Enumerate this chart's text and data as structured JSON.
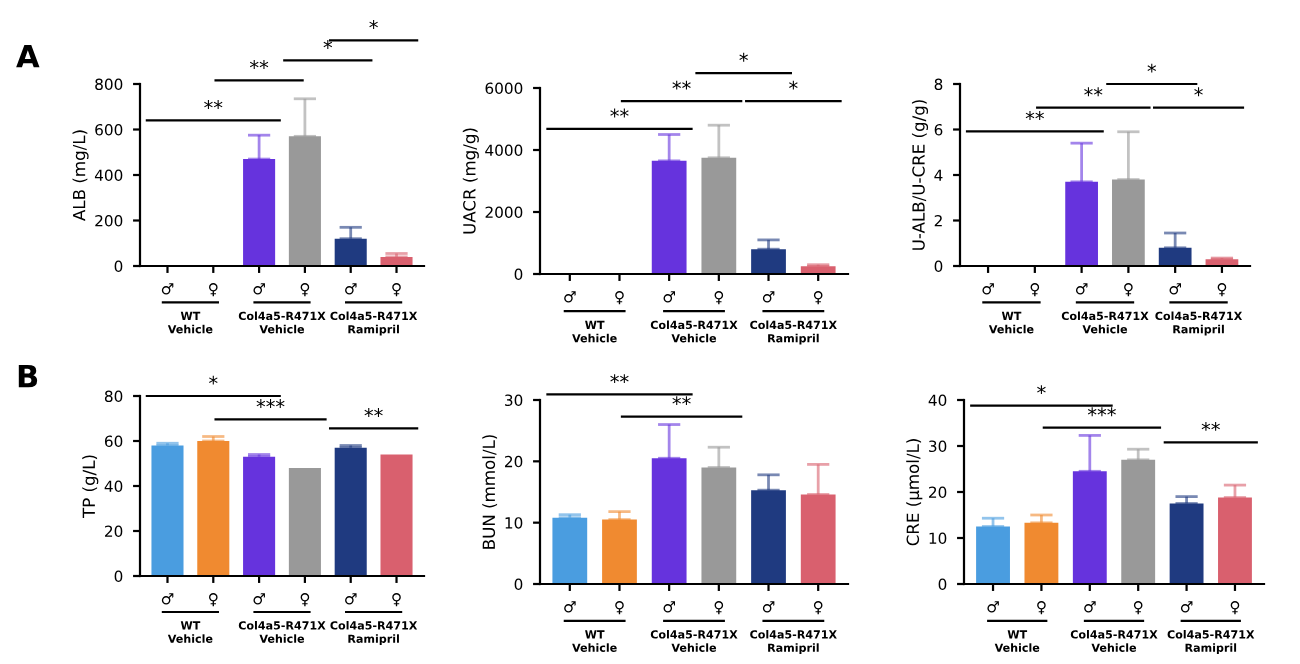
{
  "chart_data": [
    {
      "type": "bar",
      "ylabel": "ALB (mg/L)",
      "categories": [
        "♂",
        "♀",
        "♂",
        "♀",
        "♂",
        "♀"
      ],
      "colors": [
        "#4a9de0",
        "#f08a30",
        "#6633dd",
        "#999999",
        "#1f3a80",
        "#d9606e"
      ],
      "values": [
        0,
        0,
        470,
        570,
        120,
        40
      ],
      "errors": [
        null,
        null,
        [
          470,
          575
        ],
        [
          570,
          735
        ],
        [
          120,
          170
        ],
        [
          40,
          55
        ]
      ],
      "ylim": [
        0,
        800
      ],
      "yticks": [
        0,
        200,
        400,
        600,
        800
      ],
      "grid": false,
      "legend": false,
      "annotations": [
        "A",
        "**",
        "**",
        "*",
        "*",
        "WT\nVehicle",
        "Col4a5-R471X\nVehicle",
        "Col4a5-R471X\nRamipril"
      ]
    },
    {
      "type": "bar",
      "ylabel": "UACR (mg/g)",
      "categories": [
        "♂",
        "♀",
        "♂",
        "♀",
        "♂",
        "♀"
      ],
      "colors": [
        "#4a9de0",
        "#f08a30",
        "#6633dd",
        "#999999",
        "#1f3a80",
        "#d9606e"
      ],
      "values": [
        0,
        0,
        3650,
        3750,
        800,
        250
      ],
      "errors": [
        null,
        null,
        [
          3650,
          4500
        ],
        [
          3750,
          4800
        ],
        [
          800,
          1100
        ],
        [
          250,
          300
        ]
      ],
      "ylim": [
        0,
        6000
      ],
      "yticks": [
        0,
        2000,
        4000,
        6000
      ],
      "grid": false,
      "legend": false,
      "annotations": [
        "**",
        "**",
        "*",
        "*",
        "WT\nVehicle",
        "Col4a5-R471X\nVehicle",
        "Col4a5-R471X\nRamipril"
      ]
    },
    {
      "type": "bar",
      "ylabel": "U-ALB/U-CRE (g/g)",
      "categories": [
        "♂",
        "♀",
        "♂",
        "♀",
        "♂",
        "♀"
      ],
      "colors": [
        "#4a9de0",
        "#f08a30",
        "#6633dd",
        "#999999",
        "#1f3a80",
        "#d9606e"
      ],
      "values": [
        0,
        0,
        3.7,
        3.8,
        0.8,
        0.3
      ],
      "errors": [
        null,
        null,
        [
          3.7,
          5.4
        ],
        [
          3.8,
          5.9
        ],
        [
          0.8,
          1.45
        ],
        [
          0.3,
          0.35
        ]
      ],
      "ylim": [
        0,
        8
      ],
      "yticks": [
        0,
        2,
        4,
        6,
        8
      ],
      "grid": false,
      "legend": false,
      "annotations": [
        "**",
        "**",
        "*",
        "*",
        "WT\nVehicle",
        "Col4a5-R471X\nVehicle",
        "Col4a5-R471X\nRamipril"
      ]
    },
    {
      "type": "bar",
      "ylabel": "TP (g/L)",
      "categories": [
        "♂",
        "♀",
        "♂",
        "♀",
        "♂",
        "♀"
      ],
      "colors": [
        "#4a9de0",
        "#f08a30",
        "#6633dd",
        "#999999",
        "#1f3a80",
        "#d9606e"
      ],
      "values": [
        58,
        60,
        53,
        48,
        57,
        54
      ],
      "errors": [
        [
          58,
          59
        ],
        [
          60,
          62
        ],
        [
          53,
          54
        ],
        null,
        [
          57,
          58
        ],
        null
      ],
      "ylim": [
        0,
        80
      ],
      "yticks": [
        0,
        20,
        40,
        60,
        80
      ],
      "grid": false,
      "legend": false,
      "annotations": [
        "B",
        "*",
        "***",
        "**",
        "WT\nVehicle",
        "Col4a5-R471X\nVehicle",
        "Col4a5-R471X\nRamipril"
      ]
    },
    {
      "type": "bar",
      "ylabel": "BUN (mmol/L)",
      "categories": [
        "♂",
        "♀",
        "♂",
        "♀",
        "♂",
        "♀"
      ],
      "colors": [
        "#4a9de0",
        "#f08a30",
        "#6633dd",
        "#999999",
        "#1f3a80",
        "#d9606e"
      ],
      "values": [
        10.8,
        10.5,
        20.5,
        19,
        15.3,
        14.6
      ],
      "errors": [
        [
          10.8,
          11.3
        ],
        [
          10.5,
          11.8
        ],
        [
          20.5,
          26
        ],
        [
          19,
          22.3
        ],
        [
          15.3,
          17.8
        ],
        [
          14.6,
          19.5
        ]
      ],
      "ylim": [
        0,
        30
      ],
      "yticks": [
        0,
        10,
        20,
        30
      ],
      "grid": false,
      "legend": false,
      "annotations": [
        "**",
        "**",
        "WT\nVehicle",
        "Col4a5-R471X\nVehicle",
        "Col4a5-R471X\nRamipril"
      ]
    },
    {
      "type": "bar",
      "ylabel": "CRE (μmol/L)",
      "categories": [
        "♂",
        "♀",
        "♂",
        "♀",
        "♂",
        "♀"
      ],
      "colors": [
        "#4a9de0",
        "#f08a30",
        "#6633dd",
        "#999999",
        "#1f3a80",
        "#d9606e"
      ],
      "values": [
        12.5,
        13.3,
        24.5,
        27,
        17.5,
        18.8
      ],
      "errors": [
        [
          12.5,
          14.3
        ],
        [
          13.3,
          15
        ],
        [
          24.5,
          32.3
        ],
        [
          27,
          29.3
        ],
        [
          17.5,
          19
        ],
        [
          18.8,
          21.5
        ]
      ],
      "ylim": [
        0,
        40
      ],
      "yticks": [
        0,
        10,
        20,
        30,
        40
      ],
      "grid": false,
      "legend": false,
      "annotations": [
        "*",
        "***",
        "**",
        "WT\nVehicle",
        "Col4a5-R471X\nVehicle",
        "Col4a5-R471X\nRamipril"
      ]
    }
  ]
}
